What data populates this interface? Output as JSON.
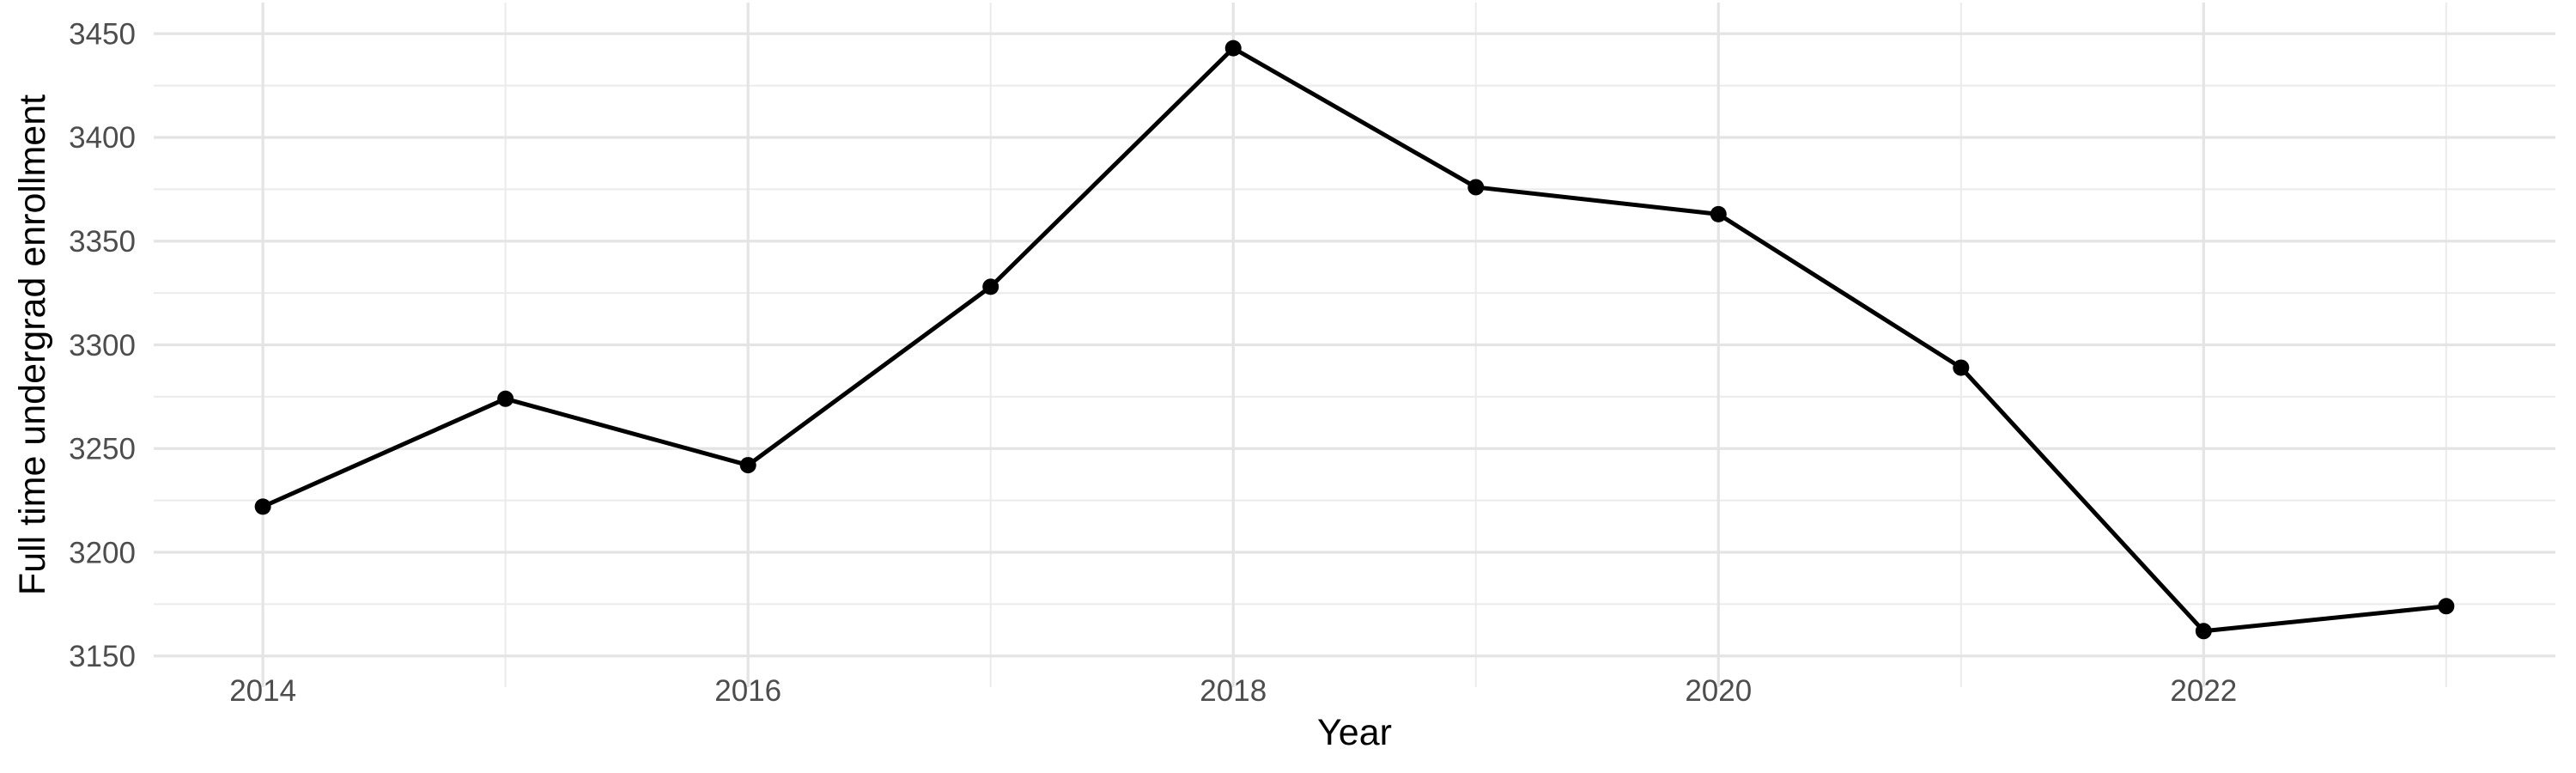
{
  "chart_data": {
    "type": "line",
    "x": [
      2014,
      2015,
      2016,
      2017,
      2018,
      2019,
      2020,
      2021,
      2022,
      2023
    ],
    "values": [
      3222,
      3274,
      3242,
      3328,
      3443,
      3376,
      3363,
      3289,
      3162,
      3174
    ],
    "title": "",
    "xlabel": "Year",
    "ylabel": "Full time undergrad enrollment",
    "xlim": [
      2013.55,
      2023.45
    ],
    "ylim": [
      3135,
      3465
    ],
    "x_major_ticks": [
      2014,
      2016,
      2018,
      2020,
      2022
    ],
    "x_minor_gridlines": [
      2015,
      2017,
      2019,
      2021,
      2023
    ],
    "y_major_ticks": [
      3150,
      3200,
      3250,
      3300,
      3350,
      3400,
      3450
    ],
    "y_minor_gridlines": [
      3175,
      3225,
      3275,
      3325,
      3375,
      3425
    ],
    "grid": true,
    "legend": false,
    "marker": "circle",
    "style": {
      "line_color": "#000000",
      "point_color": "#000000",
      "minor_grid_color": "#EBEBEB",
      "major_grid_color": "#E4E4E4",
      "tick_label_color": "#4D4D4D",
      "axis_title_color": "#000000",
      "background_color": "#FFFFFF"
    }
  }
}
